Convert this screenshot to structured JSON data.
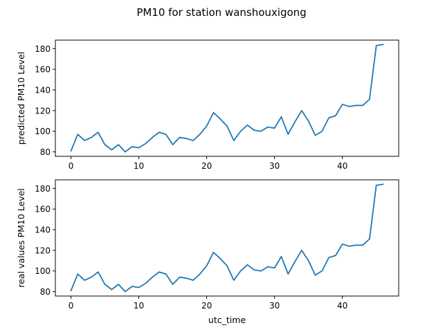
{
  "figure": {
    "title": "PM10 for station wanshouxigong"
  },
  "chart_data": [
    {
      "type": "line",
      "title": "",
      "xlabel": "",
      "ylabel": "predicted PM10 Level",
      "xlim": [
        -2.3,
        48.3
      ],
      "ylim": [
        75.7,
        188.3
      ],
      "xticks": [
        0,
        10,
        20,
        30,
        40
      ],
      "yticks": [
        80,
        100,
        120,
        140,
        160,
        180
      ],
      "grid": false,
      "x": [
        0,
        1,
        2,
        3,
        4,
        5,
        6,
        7,
        8,
        9,
        10,
        11,
        12,
        13,
        14,
        15,
        16,
        17,
        18,
        19,
        20,
        21,
        22,
        23,
        24,
        25,
        26,
        27,
        28,
        29,
        30,
        31,
        32,
        33,
        34,
        35,
        36,
        37,
        38,
        39,
        40,
        41,
        42,
        43,
        44,
        45,
        46
      ],
      "series": [
        {
          "values": [
            81,
            97,
            91,
            94,
            99,
            87,
            82,
            87,
            80,
            85,
            84,
            88,
            94,
            99,
            97,
            87,
            94,
            93,
            91,
            97,
            105,
            118,
            112,
            105,
            91,
            100,
            106,
            101,
            100,
            104,
            103,
            114,
            97,
            109,
            120,
            110,
            96,
            100,
            113,
            115,
            126,
            124,
            125,
            125,
            131,
            183,
            184
          ]
        }
      ]
    },
    {
      "type": "line",
      "title": "",
      "xlabel": "utc_time",
      "ylabel": "real values PM10 Level",
      "xlim": [
        -2.3,
        48.3
      ],
      "ylim": [
        75.7,
        188.3
      ],
      "xticks": [
        0,
        10,
        20,
        30,
        40
      ],
      "yticks": [
        80,
        100,
        120,
        140,
        160,
        180
      ],
      "grid": false,
      "x": [
        0,
        1,
        2,
        3,
        4,
        5,
        6,
        7,
        8,
        9,
        10,
        11,
        12,
        13,
        14,
        15,
        16,
        17,
        18,
        19,
        20,
        21,
        22,
        23,
        24,
        25,
        26,
        27,
        28,
        29,
        30,
        31,
        32,
        33,
        34,
        35,
        36,
        37,
        38,
        39,
        40,
        41,
        42,
        43,
        44,
        45,
        46
      ],
      "series": [
        {
          "values": [
            81,
            97,
            91,
            94,
            99,
            87,
            82,
            87,
            80,
            85,
            84,
            88,
            94,
            99,
            97,
            87,
            94,
            93,
            91,
            97,
            105,
            118,
            112,
            105,
            91,
            100,
            106,
            101,
            100,
            104,
            103,
            114,
            97,
            109,
            120,
            110,
            96,
            100,
            113,
            115,
            126,
            124,
            125,
            125,
            131,
            183,
            184
          ]
        }
      ]
    }
  ],
  "style": {
    "line_color": "#1f77b4",
    "frame_color": "#000000",
    "background": "#ffffff"
  }
}
